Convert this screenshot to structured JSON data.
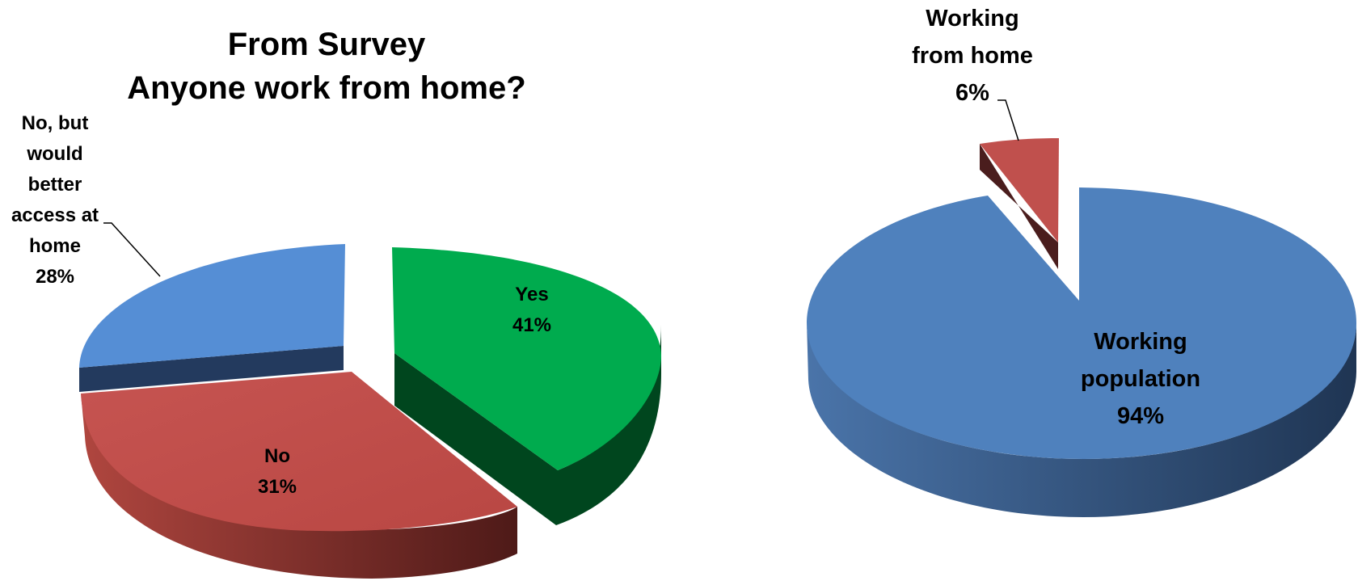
{
  "colors": {
    "yes": "#00AB4E",
    "no": "#C0504D",
    "no_but": "#558ED5",
    "working_population": "#4F81BD",
    "working_from_home": "#C0504D"
  },
  "chart_data": [
    {
      "type": "pie",
      "style": "3d-exploded",
      "title": "From Survey\nAnyone work from home?",
      "title_lines": [
        "From Survey",
        "Anyone work from home?"
      ],
      "slices": [
        {
          "label": "Yes",
          "value": 41,
          "display": "41%",
          "color": "#00AB4E"
        },
        {
          "label": "No",
          "value": 31,
          "display": "31%",
          "color": "#C0504D"
        },
        {
          "label": "No, but would better access at home",
          "value": 28,
          "display": "28%",
          "color": "#558ED5",
          "label_lines": [
            "No, but",
            "would",
            "better",
            "access at",
            "home",
            "28%"
          ]
        }
      ],
      "legend": "none"
    },
    {
      "type": "pie",
      "style": "3d-exploded",
      "title": "",
      "slices": [
        {
          "label": "Working population",
          "value": 94,
          "display": "94%",
          "color": "#4F81BD",
          "label_lines": [
            "Working",
            "population",
            "94%"
          ]
        },
        {
          "label": "Working from home",
          "value": 6,
          "display": "6%",
          "color": "#C0504D",
          "label_lines": [
            "Working",
            "from home",
            "6%"
          ]
        }
      ],
      "legend": "none"
    }
  ]
}
